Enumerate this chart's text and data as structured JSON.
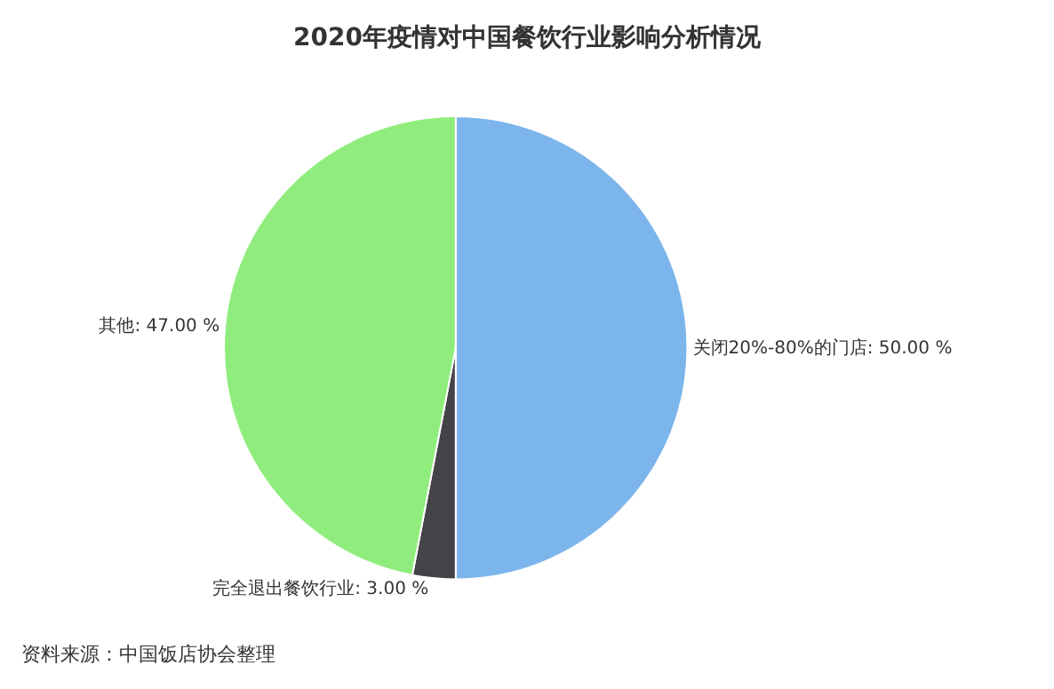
{
  "chart_data": {
    "type": "pie",
    "title": "2020年疫情对中国餐饮行业影响分析情况",
    "categories": [
      "关闭20%-80%的门店",
      "完全退出餐饮行业",
      "其他"
    ],
    "values": [
      50.0,
      3.0,
      47.0
    ],
    "value_labels": [
      "50.00 %",
      "3.00 %",
      "47.00 %"
    ],
    "colors": [
      "#7cb5ec",
      "#434348",
      "#90ed7d"
    ],
    "legend": false,
    "annotations": [
      "资料来源：中国饭店协会整理"
    ]
  }
}
